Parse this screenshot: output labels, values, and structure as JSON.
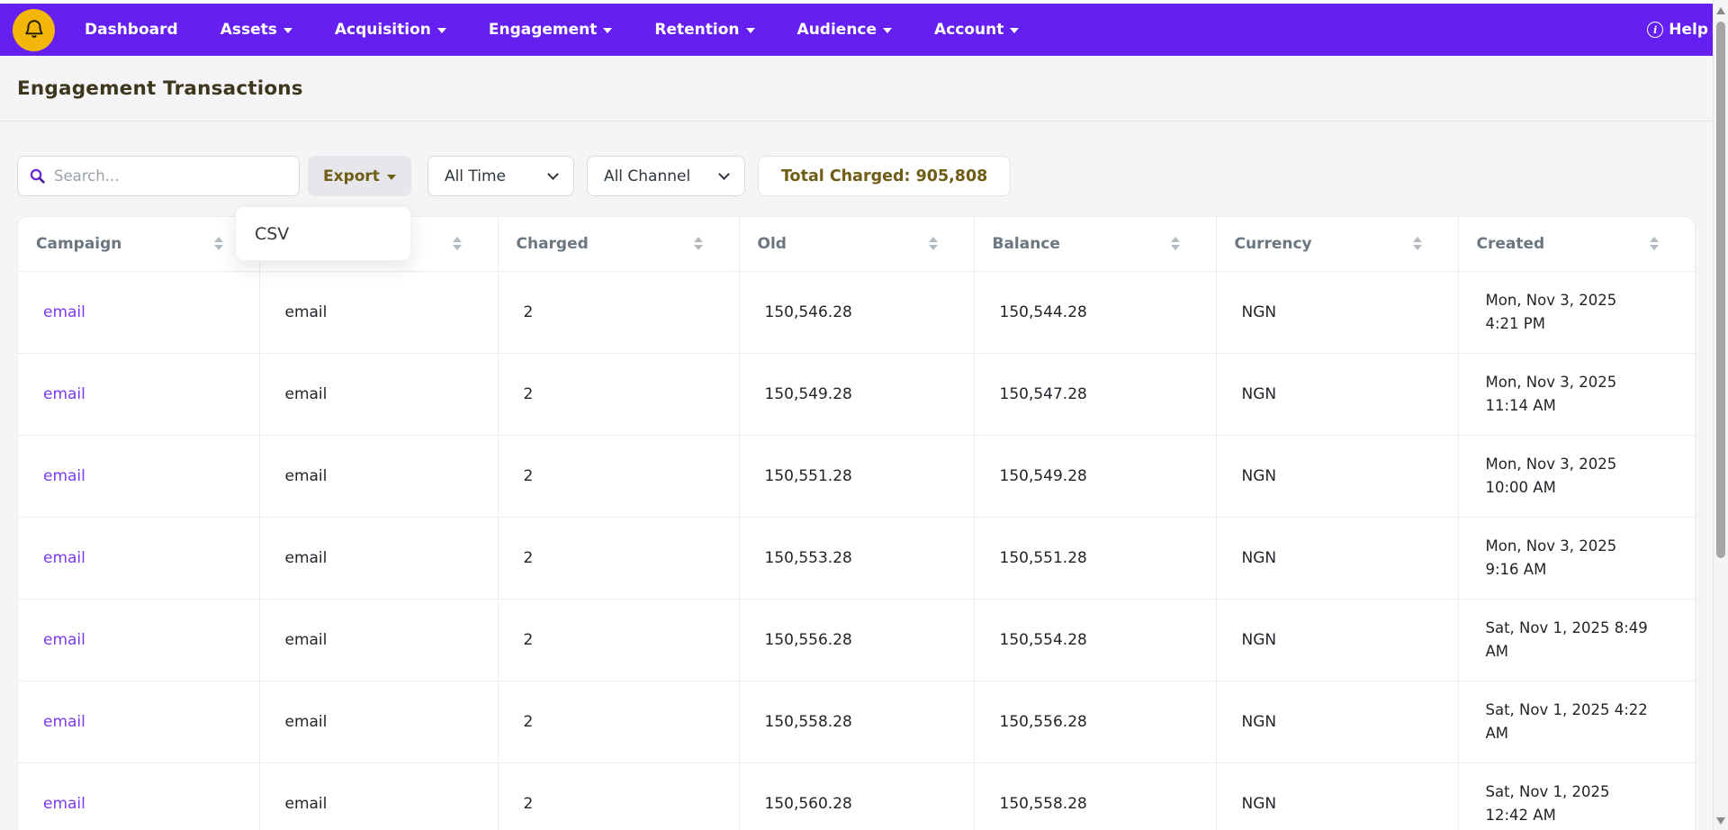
{
  "navbar": {
    "items": [
      {
        "label": "Dashboard",
        "has_caret": false
      },
      {
        "label": "Assets",
        "has_caret": true
      },
      {
        "label": "Acquisition",
        "has_caret": true
      },
      {
        "label": "Engagement",
        "has_caret": true
      },
      {
        "label": "Retention",
        "has_caret": true
      },
      {
        "label": "Audience",
        "has_caret": true
      },
      {
        "label": "Account",
        "has_caret": true
      }
    ],
    "help_label": "Help",
    "info_glyph": "i"
  },
  "page": {
    "title": "Engagement Transactions"
  },
  "filters": {
    "search_placeholder": "Search...",
    "export_label": "Export",
    "export_menu_items": [
      "CSV"
    ],
    "time_filter": "All Time",
    "channel_filter": "All Channel",
    "total_charged_label": "Total Charged: 905,808"
  },
  "table": {
    "columns": [
      {
        "label": "Campaign",
        "sortable": true
      },
      {
        "label": "",
        "sortable": true
      },
      {
        "label": "Charged",
        "sortable": true
      },
      {
        "label": "Old",
        "sortable": true
      },
      {
        "label": "Balance",
        "sortable": true
      },
      {
        "label": "Currency",
        "sortable": true
      },
      {
        "label": "Created",
        "sortable": true
      }
    ],
    "rows": [
      {
        "campaign": "email",
        "channel": "email",
        "charged": "2",
        "old": "150,546.28",
        "balance": "150,544.28",
        "currency": "NGN",
        "created": "Mon, Nov 3, 2025 4:21 PM"
      },
      {
        "campaign": "email",
        "channel": "email",
        "charged": "2",
        "old": "150,549.28",
        "balance": "150,547.28",
        "currency": "NGN",
        "created": "Mon, Nov 3, 2025 11:14 AM"
      },
      {
        "campaign": "email",
        "channel": "email",
        "charged": "2",
        "old": "150,551.28",
        "balance": "150,549.28",
        "currency": "NGN",
        "created": "Mon, Nov 3, 2025 10:00 AM"
      },
      {
        "campaign": "email",
        "channel": "email",
        "charged": "2",
        "old": "150,553.28",
        "balance": "150,551.28",
        "currency": "NGN",
        "created": "Mon, Nov 3, 2025 9:16 AM"
      },
      {
        "campaign": "email",
        "channel": "email",
        "charged": "2",
        "old": "150,556.28",
        "balance": "150,554.28",
        "currency": "NGN",
        "created": "Sat, Nov 1, 2025 8:49 AM"
      },
      {
        "campaign": "email",
        "channel": "email",
        "charged": "2",
        "old": "150,558.28",
        "balance": "150,556.28",
        "currency": "NGN",
        "created": "Sat, Nov 1, 2025 4:22 AM"
      },
      {
        "campaign": "email",
        "channel": "email",
        "charged": "2",
        "old": "150,560.28",
        "balance": "150,558.28",
        "currency": "NGN",
        "created": "Sat, Nov 1, 2025 12:42 AM"
      }
    ]
  },
  "colors": {
    "navbar": "#651ff0",
    "brand_circle": "#f3b70c",
    "accent_gold_text": "#6f5d15",
    "link_purple": "#7c3aed",
    "header_gray": "#6c7680",
    "page_bg": "#f5f5f7"
  }
}
